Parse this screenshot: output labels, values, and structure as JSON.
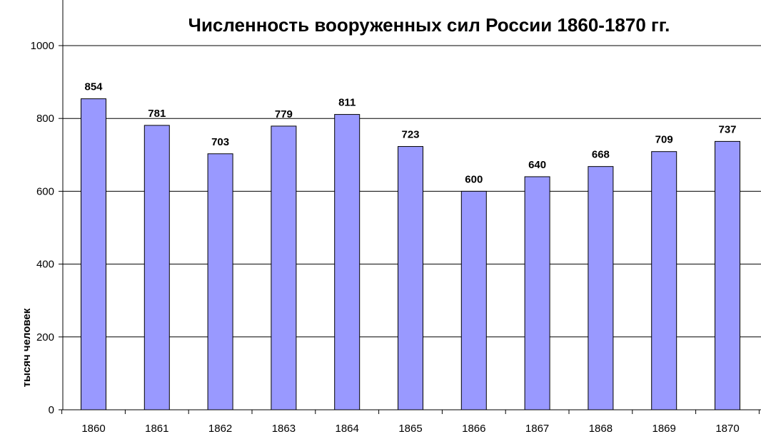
{
  "chart_data": {
    "type": "bar",
    "title": "Численность вооруженных сил России 1860-1870 гг.",
    "xlabel": "",
    "ylabel": "тысяч человек",
    "categories": [
      "1860",
      "1861",
      "1862",
      "1863",
      "1864",
      "1865",
      "1866",
      "1867",
      "1868",
      "1869",
      "1870"
    ],
    "values": [
      854,
      781,
      703,
      779,
      811,
      723,
      600,
      640,
      668,
      709,
      737
    ],
    "ylim": [
      0,
      1000
    ],
    "yticks": [
      0,
      200,
      400,
      600,
      800,
      1000
    ],
    "grid": true,
    "legend": "none",
    "bar_color": "#9999ff",
    "bar_border_color": "#000000"
  }
}
